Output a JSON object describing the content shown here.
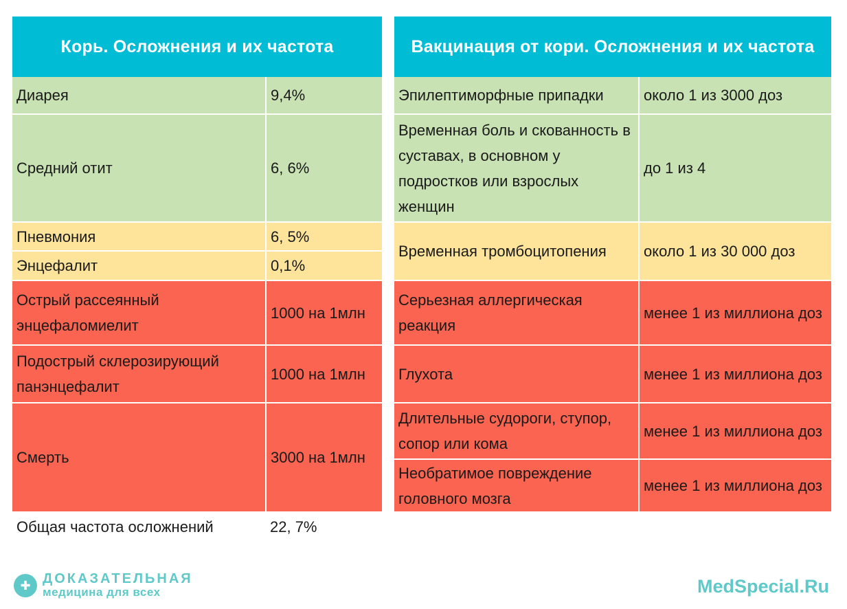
{
  "measles": {
    "title": "Корь. Осложнения и их частота",
    "rows": [
      {
        "label": "Диарея",
        "value": "9,4%"
      },
      {
        "label": "Средний отит",
        "value": "6, 6%"
      },
      {
        "label": "Пневмония",
        "value": "6, 5%"
      },
      {
        "label": "Энцефалит",
        "value": "0,1%"
      },
      {
        "label": "Острый рассеянный энцефаломиелит",
        "value": "1000 на 1млн"
      },
      {
        "label": "Подострый склерозирующий панэнцефалит",
        "value": "1000 на 1млн"
      },
      {
        "label": "Смерть",
        "value": "3000 на 1млн"
      }
    ],
    "total_label": "Общая частота осложнений",
    "total_value": "22, 7%"
  },
  "vaccine": {
    "title": "Вакцинация от кори. Осложнения и их частота",
    "rows": [
      {
        "label": "Эпилептиморфные припадки",
        "value": "около 1 из 3000 доз"
      },
      {
        "label": "Временная боль и скованность в суставах, в основном у подростков или взрослых женщин",
        "value": "до 1 из 4"
      },
      {
        "label": "Временная тромбоцитопения",
        "value": "около 1 из 30 000 доз"
      },
      {
        "label": "Серьезная аллергическая реакция",
        "value": "менее 1 из миллиона доз"
      },
      {
        "label": "Глухота",
        "value": "менее 1 из миллиона доз"
      },
      {
        "label": "Длительные судороги, ступор, сопор или кома",
        "value": "менее 1 из миллиона доз"
      },
      {
        "label": "Необратимое повреждение головного мозга",
        "value": "менее 1 из миллиона доз"
      }
    ]
  },
  "colors": {
    "header": "#00bcd4",
    "green": "#c8e2b4",
    "yellow": "#fde49a",
    "red": "#fa6450",
    "brand": "#5ec9c8"
  },
  "footer": {
    "logo_icon": "heart-plus-icon",
    "logo_line1": "ДОКАЗАТЕЛЬНАЯ",
    "logo_line2": "медицина для всех",
    "site": "MedSpecial.Ru"
  }
}
